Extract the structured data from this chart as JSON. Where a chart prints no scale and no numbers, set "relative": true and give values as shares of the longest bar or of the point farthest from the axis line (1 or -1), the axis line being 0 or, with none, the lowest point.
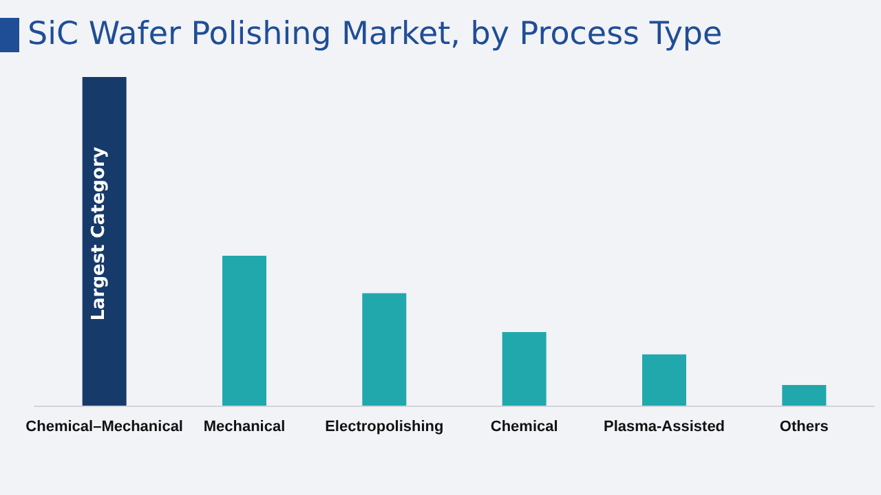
{
  "chart_data": {
    "type": "bar",
    "title": "SiC Wafer Polishing Market, by Process Type",
    "categories": [
      "Chemical–Mechanical",
      "Mechanical",
      "Electropolishing",
      "Chemical",
      "Plasma-Assisted",
      "Others"
    ],
    "values": [
      1,
      0.456,
      0.342,
      0.224,
      0.156,
      0.063
    ],
    "colors": [
      "#163a6a",
      "#21a8ac",
      "#21a8ac",
      "#21a8ac",
      "#21a8ac",
      "#21a8ac"
    ],
    "relative": true,
    "annotations": [
      "Largest Category"
    ]
  }
}
